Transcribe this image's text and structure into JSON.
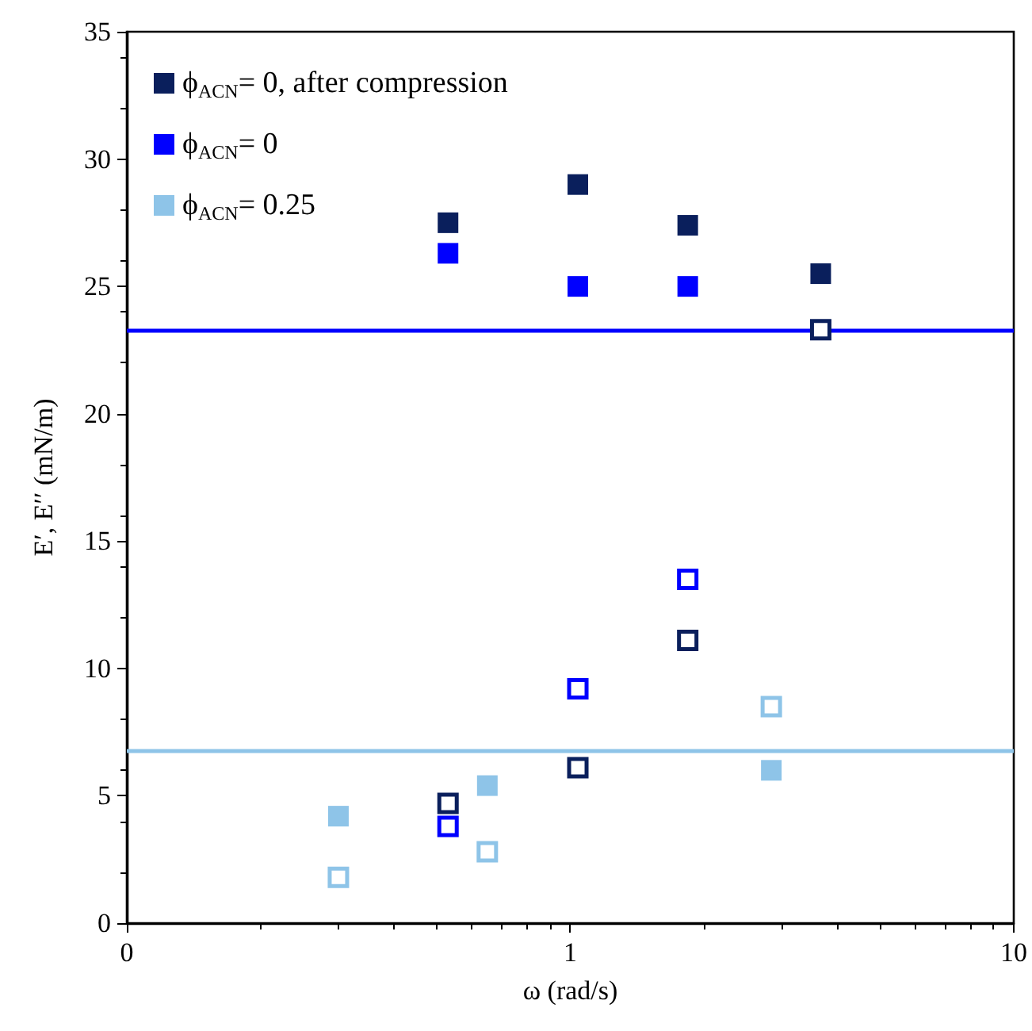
{
  "chart_data": {
    "type": "scatter",
    "xlabel": "ω (rad/s)",
    "ylabel": "E′, E′′ (mN/m)",
    "log": "x",
    "xlim": [
      0.1,
      10
    ],
    "xticks": [
      {
        "value": 0.1,
        "label": "0"
      },
      1,
      10
    ],
    "ylim": [
      0,
      35
    ],
    "yticks": [
      0,
      5,
      10,
      15,
      20,
      25,
      30,
      35
    ],
    "grid": false,
    "legend": "top left",
    "marker": "square",
    "series": [
      {
        "name": "ϕ$_{ACN}$= 0, after compression",
        "color": "#0a1f5c",
        "x": [
          0.53,
          1.04,
          1.84,
          3.67
        ],
        "values": [
          27.5,
          29.0,
          27.4,
          25.5
        ]
      },
      {
        "name": "ϕ$_{ACN}$= 0",
        "color": "#0000ff",
        "x": [
          0.53,
          1.04,
          1.84
        ],
        "values": [
          26.3,
          25.0,
          25.0
        ]
      },
      {
        "name": "ϕ$_{ACN}$= 0.25",
        "color": "#8ec4e8",
        "x": [
          0.3,
          0.65,
          2.84
        ],
        "values": [
          4.2,
          5.4,
          6.0
        ]
      },
      {
        "color": "#0a1f5c",
        "x": [
          0.53,
          1.04,
          1.84,
          3.67
        ],
        "values": [
          4.7,
          6.1,
          11.1,
          23.3
        ]
      },
      {
        "color": "#0000ff",
        "x": [
          0.53,
          1.04,
          1.84
        ],
        "values": [
          3.8,
          9.2,
          13.5
        ]
      },
      {
        "color": "#8ec4e8",
        "x": [
          0.3,
          0.65,
          2.84
        ],
        "values": [
          1.8,
          2.8,
          8.5
        ]
      }
    ],
    "ref_lines": [
      {
        "axis": "y",
        "value": 23.3,
        "color": "#0000ff"
      },
      {
        "axis": "y",
        "value": 6.8,
        "color": "#8ec4e8"
      }
    ]
  }
}
